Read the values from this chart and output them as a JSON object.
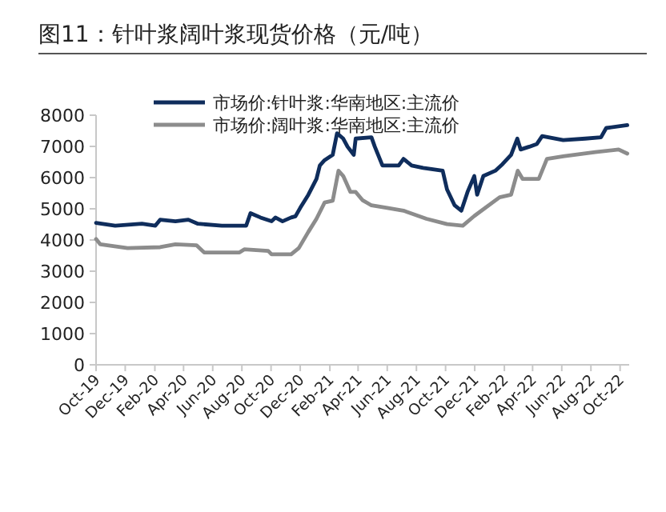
{
  "chart_data": {
    "type": "line",
    "title": "图11：针叶浆阔叶浆现货价格（元/吨）",
    "xlim": [
      "2019-10-01",
      "2022-10-20"
    ],
    "xticks": [
      {
        "value": "2019-10-01",
        "label": "Oct-19"
      },
      {
        "value": "2019-12-01",
        "label": "Dec-19"
      },
      {
        "value": "2020-02-01",
        "label": "Feb-20"
      },
      {
        "value": "2020-04-01",
        "label": "Apr-20"
      },
      {
        "value": "2020-06-01",
        "label": "Jun-20"
      },
      {
        "value": "2020-08-01",
        "label": "Aug-20"
      },
      {
        "value": "2020-10-01",
        "label": "Oct-20"
      },
      {
        "value": "2020-12-01",
        "label": "Dec-20"
      },
      {
        "value": "2021-02-01",
        "label": "Feb-21"
      },
      {
        "value": "2021-04-01",
        "label": "Apr-21"
      },
      {
        "value": "2021-06-01",
        "label": "Jun-21"
      },
      {
        "value": "2021-08-01",
        "label": "Aug-21"
      },
      {
        "value": "2021-10-01",
        "label": "Oct-21"
      },
      {
        "value": "2021-12-01",
        "label": "Dec-21"
      },
      {
        "value": "2022-02-01",
        "label": "Feb-22"
      },
      {
        "value": "2022-04-01",
        "label": "Apr-22"
      },
      {
        "value": "2022-06-01",
        "label": "Jun-22"
      },
      {
        "value": "2022-08-01",
        "label": "Aug-22"
      },
      {
        "value": "2022-10-01",
        "label": "Oct-22"
      }
    ],
    "ylim": [
      0,
      8000
    ],
    "yticks": [
      0,
      1000,
      2000,
      3000,
      4000,
      5000,
      6000,
      7000,
      8000
    ],
    "legend": "top",
    "grid": false,
    "marker": "none",
    "line_style": "solid",
    "series": [
      {
        "name": "市场价:针叶浆:华南地区:主流价",
        "color": "#0f2d5c",
        "x": [
          "2019-10-01",
          "2019-11-10",
          "2020-01-05",
          "2020-02-02",
          "2020-02-12",
          "2020-03-15",
          "2020-04-11",
          "2020-05-01",
          "2020-06-20",
          "2020-08-10",
          "2020-08-19",
          "2020-09-09",
          "2020-10-02",
          "2020-10-10",
          "2020-10-25",
          "2020-11-12",
          "2020-11-21",
          "2020-12-01",
          "2020-12-18",
          "2021-01-04",
          "2021-01-11",
          "2021-01-21",
          "2021-02-07",
          "2021-02-16",
          "2021-03-01",
          "2021-03-10",
          "2021-03-23",
          "2021-03-27",
          "2021-04-29",
          "2021-05-06",
          "2021-05-22",
          "2021-06-25",
          "2021-07-05",
          "2021-07-22",
          "2021-08-15",
          "2021-09-25",
          "2021-10-04",
          "2021-10-20",
          "2021-11-03",
          "2021-11-16",
          "2021-11-30",
          "2021-12-06",
          "2021-12-19",
          "2022-01-13",
          "2022-01-28",
          "2022-02-15",
          "2022-02-28",
          "2022-03-07",
          "2022-03-25",
          "2022-04-10",
          "2022-04-21",
          "2022-06-04",
          "2022-07-20",
          "2022-08-22",
          "2022-09-02",
          "2022-10-16"
        ],
        "values": [
          4550,
          4460,
          4520,
          4460,
          4650,
          4600,
          4650,
          4520,
          4460,
          4460,
          4860,
          4720,
          4600,
          4720,
          4600,
          4720,
          4760,
          5030,
          5450,
          5960,
          6390,
          6560,
          6730,
          7420,
          7250,
          6990,
          6730,
          7250,
          7290,
          6990,
          6390,
          6390,
          6600,
          6390,
          6310,
          6220,
          5620,
          5110,
          4940,
          5540,
          6050,
          5450,
          6050,
          6220,
          6430,
          6730,
          7250,
          6900,
          6990,
          7080,
          7330,
          7200,
          7250,
          7290,
          7590,
          7680
        ]
      },
      {
        "name": "市场价:阔叶浆:华南地区:主流价",
        "color": "#8c8c8c",
        "x": [
          "2019-10-01",
          "2019-10-10",
          "2019-12-06",
          "2020-02-12",
          "2020-03-15",
          "2020-04-28",
          "2020-05-14",
          "2020-07-27",
          "2020-08-06",
          "2020-09-25",
          "2020-10-02",
          "2020-11-12",
          "2020-11-28",
          "2020-12-18",
          "2021-01-04",
          "2021-01-21",
          "2021-02-07",
          "2021-02-19",
          "2021-03-01",
          "2021-03-16",
          "2021-03-27",
          "2021-04-10",
          "2021-04-29",
          "2021-06-01",
          "2021-07-05",
          "2021-08-22",
          "2021-10-04",
          "2021-11-06",
          "2021-11-30",
          "2022-01-22",
          "2022-02-15",
          "2022-03-01",
          "2022-03-11",
          "2022-04-14",
          "2022-05-01",
          "2022-06-04",
          "2022-08-10",
          "2022-09-28",
          "2022-10-16"
        ],
        "values": [
          4030,
          3860,
          3740,
          3770,
          3860,
          3830,
          3600,
          3600,
          3700,
          3650,
          3540,
          3540,
          3740,
          4260,
          4680,
          5200,
          5260,
          6220,
          6050,
          5540,
          5540,
          5280,
          5110,
          5030,
          4940,
          4680,
          4510,
          4460,
          4770,
          5370,
          5450,
          6220,
          5960,
          5960,
          6600,
          6680,
          6820,
          6900,
          6770
        ]
      }
    ]
  }
}
